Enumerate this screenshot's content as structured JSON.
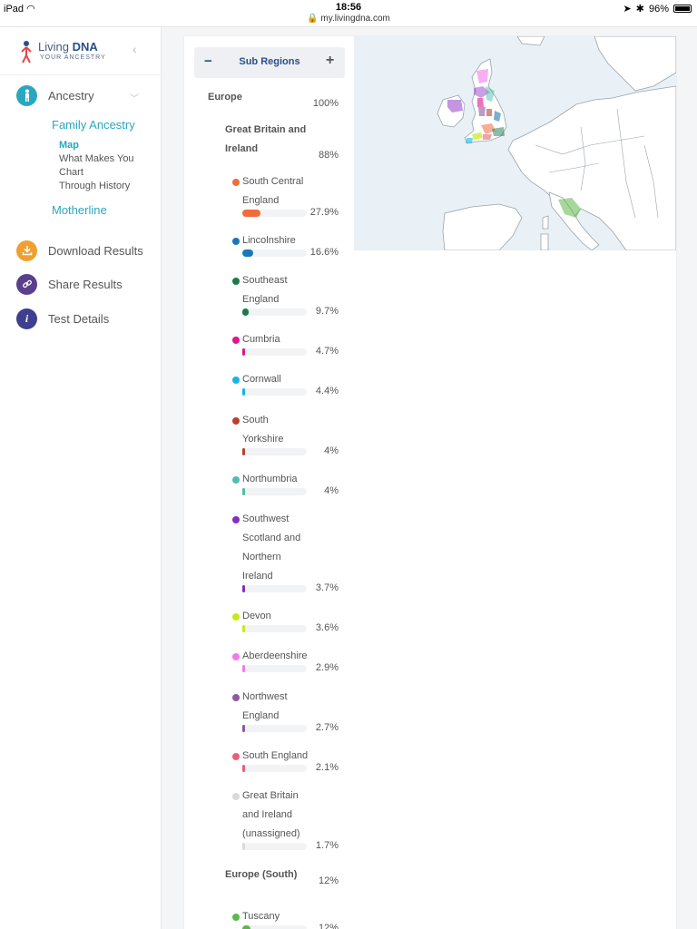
{
  "status_bar": {
    "device": "iPad",
    "time": "18:56",
    "url": "my.livingdna.com",
    "battery": "96%"
  },
  "brand": {
    "name_part1": "Living",
    "name_part2": "DNA",
    "tagline": "YOUR ANCESTRY"
  },
  "nav": {
    "ancestry": "Ancestry",
    "family_ancestry": "Family Ancestry",
    "family_sub": [
      "Map",
      "What Makes You",
      "Chart",
      "Through History"
    ],
    "motherline": "Motherline",
    "download": "Download Results",
    "share": "Share Results",
    "test_details": "Test Details"
  },
  "panel": {
    "toggle_minus": "−",
    "toggle_label": "Sub Regions",
    "toggle_plus": "+",
    "regions": [
      {
        "name": "Europe",
        "pct": "100%"
      },
      {
        "name_lines": [
          "Great Britain and",
          "Ireland"
        ],
        "pct": "88%"
      },
      {
        "name_lines": [
          "Europe (South)"
        ],
        "pct": "12%"
      }
    ],
    "subregions": [
      {
        "lines": [
          "South Central",
          "England"
        ],
        "pct": "27.9%",
        "value": 27.9,
        "color": "#f26b3a"
      },
      {
        "lines": [
          "Lincolnshire"
        ],
        "pct": "16.6%",
        "value": 16.6,
        "color": "#1a78b8"
      },
      {
        "lines": [
          "Southeast",
          "England"
        ],
        "pct": "9.7%",
        "value": 9.7,
        "color": "#1b7a4b"
      },
      {
        "lines": [
          "Cumbria"
        ],
        "pct": "4.7%",
        "value": 4.7,
        "color": "#e0158c"
      },
      {
        "lines": [
          "Cornwall"
        ],
        "pct": "4.4%",
        "value": 4.4,
        "color": "#18b4e6"
      },
      {
        "lines": [
          "South",
          "Yorkshire"
        ],
        "pct": "4%",
        "value": 4,
        "color": "#b8412e"
      },
      {
        "lines": [
          "Northumbria"
        ],
        "pct": "4%",
        "value": 4,
        "color": "#4cc0a8"
      },
      {
        "lines": [
          "Southwest",
          "Scotland and",
          "Northern",
          "Ireland"
        ],
        "pct": "3.7%",
        "value": 3.7,
        "color": "#8a2bc2"
      },
      {
        "lines": [
          "Devon"
        ],
        "pct": "3.6%",
        "value": 3.6,
        "color": "#c8e81a"
      },
      {
        "lines": [
          "Aberdeenshire"
        ],
        "pct": "2.9%",
        "value": 2.9,
        "color": "#f27ae8"
      },
      {
        "lines": [
          "Northwest",
          "England"
        ],
        "pct": "2.7%",
        "value": 2.7,
        "color": "#8b5aa0"
      },
      {
        "lines": [
          "South England"
        ],
        "pct": "2.1%",
        "value": 2.1,
        "color": "#e8607a"
      },
      {
        "lines": [
          "Great Britain",
          "and Ireland",
          "(unassigned)"
        ],
        "pct": "1.7%",
        "value": 1.7,
        "color": "#d9d9d9"
      },
      {
        "lines": [
          "Tuscany"
        ],
        "pct": "12%",
        "value": 12,
        "color": "#5cb84a"
      }
    ]
  },
  "colors": {
    "accent": "#2aa7c0",
    "brand": "#2a4f8a",
    "download_icon": "#f0a030",
    "share_icon": "#5a3f8a",
    "details_icon": "#3f3f8f"
  },
  "icons": {
    "ancestry": "person-icon",
    "download": "download-icon",
    "share": "link-icon",
    "details": "info-icon"
  }
}
